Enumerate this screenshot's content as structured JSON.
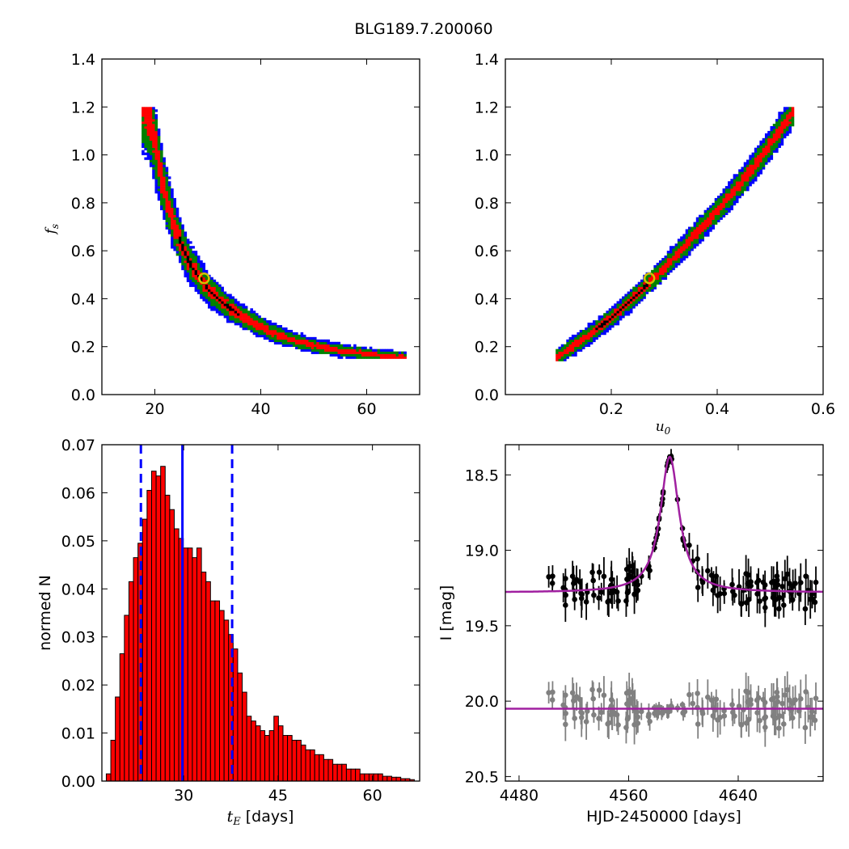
{
  "figure_title": "BLG189.7.200060",
  "chart_data": [
    {
      "id": "fs_vs_tE",
      "type": "heatmap",
      "xlabel": "",
      "ylabel": "f",
      "ylabel_sub": "s",
      "xlim": [
        10,
        70
      ],
      "ylim": [
        0.0,
        1.4
      ],
      "xticks": [
        20,
        40,
        60
      ],
      "yticks": [
        0.0,
        0.2,
        0.4,
        0.6,
        0.8,
        1.0,
        1.2,
        1.4
      ],
      "band": {
        "x": [
          17.5,
          18,
          19,
          20,
          21,
          22,
          23,
          24,
          25,
          26,
          27,
          28,
          29,
          30,
          32,
          34,
          36,
          38,
          40,
          42,
          45,
          48,
          52,
          56,
          60,
          64,
          67
        ],
        "y": [
          1.2,
          1.18,
          1.12,
          1.02,
          0.9,
          0.81,
          0.73,
          0.67,
          0.61,
          0.56,
          0.52,
          0.49,
          0.46,
          0.43,
          0.39,
          0.355,
          0.325,
          0.3,
          0.275,
          0.255,
          0.23,
          0.21,
          0.19,
          0.175,
          0.165,
          0.155,
          0.15
        ]
      },
      "regions": [
        {
          "name": "3-sigma",
          "color": "#0000ff"
        },
        {
          "name": "2-sigma",
          "color": "#008000"
        },
        {
          "name": "1-sigma",
          "color": "#ff0000"
        },
        {
          "name": "best",
          "color": "#000000"
        }
      ],
      "marker": {
        "x": 29.3,
        "y": 0.485,
        "edge": "#d4c000"
      }
    },
    {
      "id": "fs_vs_u0",
      "type": "heatmap",
      "xlabel": "u",
      "xlabel_sub": "0",
      "ylabel": "",
      "xlim": [
        0.0,
        0.6
      ],
      "ylim": [
        0.0,
        1.4
      ],
      "xticks": [
        0.2,
        0.4,
        0.6
      ],
      "yticks": [
        0.0,
        0.2,
        0.4,
        0.6,
        0.8,
        1.0,
        1.2,
        1.4
      ],
      "band": {
        "x": [
          0.095,
          0.12,
          0.15,
          0.18,
          0.21,
          0.24,
          0.27,
          0.3,
          0.33,
          0.36,
          0.39,
          0.42,
          0.45,
          0.48,
          0.51,
          0.545
        ],
        "y": [
          0.15,
          0.19,
          0.235,
          0.285,
          0.34,
          0.4,
          0.465,
          0.53,
          0.6,
          0.67,
          0.745,
          0.82,
          0.9,
          0.985,
          1.08,
          1.19
        ]
      },
      "marker": {
        "x": 0.272,
        "y": 0.485,
        "edge": "#d4c000"
      }
    },
    {
      "id": "tE_histogram",
      "type": "bar",
      "xlabel": "t",
      "xlabel_sub": "E",
      "xlabel_rest": " [days]",
      "ylabel": "normed N",
      "xlim": [
        17,
        67.5
      ],
      "ylim": [
        0.0,
        0.07
      ],
      "xticks": [
        30,
        45,
        60
      ],
      "yticks": [
        0.0,
        0.01,
        0.02,
        0.03,
        0.04,
        0.05,
        0.06,
        0.07
      ],
      "bar_width": 0.72,
      "bar_color": "#ff0000",
      "bar_x": [
        17.7,
        18.42,
        19.14,
        19.86,
        20.58,
        21.3,
        22.02,
        22.74,
        23.46,
        24.18,
        24.9,
        25.62,
        26.34,
        27.06,
        27.78,
        28.5,
        29.22,
        29.94,
        30.66,
        31.38,
        32.1,
        32.82,
        33.54,
        34.26,
        34.98,
        35.7,
        36.42,
        37.14,
        37.86,
        38.58,
        39.3,
        40.02,
        40.74,
        41.46,
        42.18,
        42.9,
        43.62,
        44.34,
        45.06,
        45.78,
        46.5,
        47.22,
        47.94,
        48.66,
        49.38,
        50.1,
        50.82,
        51.54,
        52.26,
        52.98,
        53.7,
        54.42,
        55.14,
        55.86,
        56.58,
        57.3,
        58.02,
        58.74,
        59.46,
        60.18,
        60.9,
        61.62,
        62.34,
        63.06,
        63.78,
        64.5,
        65.22,
        65.94
      ],
      "values": [
        0.0015,
        0.0085,
        0.0175,
        0.0265,
        0.0345,
        0.0415,
        0.0465,
        0.0495,
        0.0545,
        0.0605,
        0.0645,
        0.0635,
        0.0655,
        0.0595,
        0.0565,
        0.0525,
        0.0505,
        0.0485,
        0.0485,
        0.0465,
        0.0485,
        0.0435,
        0.0415,
        0.0375,
        0.0375,
        0.0355,
        0.0335,
        0.0305,
        0.0275,
        0.0225,
        0.0185,
        0.0135,
        0.0125,
        0.0115,
        0.0105,
        0.0095,
        0.0105,
        0.0135,
        0.0115,
        0.0095,
        0.0095,
        0.0085,
        0.0085,
        0.0075,
        0.0065,
        0.0065,
        0.0055,
        0.0055,
        0.0045,
        0.0045,
        0.0035,
        0.0035,
        0.0035,
        0.0025,
        0.0025,
        0.0025,
        0.0015,
        0.0015,
        0.0015,
        0.0015,
        0.0015,
        0.001,
        0.001,
        0.0008,
        0.0008,
        0.0005,
        0.0005,
        0.0003
      ],
      "median_line": {
        "x": 29.8,
        "color": "#0000ff"
      },
      "interval_lines": {
        "x": [
          23.2,
          37.7
        ],
        "color": "#0000ff"
      }
    },
    {
      "id": "light_curve",
      "type": "scatter",
      "xlabel": "HJD-2450000 [days]",
      "ylabel": "I [mag]",
      "xlim": [
        4470,
        4702
      ],
      "ylim": [
        20.53,
        18.3
      ],
      "y_inverted": true,
      "xticks": [
        4480,
        4560,
        4640
      ],
      "yticks": [
        18.5,
        19.0,
        19.5,
        20.0,
        20.5
      ],
      "model": {
        "color": "#a020a0",
        "baseline": 19.28,
        "peak_time": 4590,
        "peak_mag": 18.38,
        "tE": 29.8
      },
      "residual_model": {
        "color": "#a020a0",
        "level": 20.05
      },
      "series": [
        {
          "name": "",
          "color": "#000000",
          "offset": 0
        },
        {
          "name": "",
          "color": "#808080",
          "offset": 0
        }
      ]
    }
  ]
}
